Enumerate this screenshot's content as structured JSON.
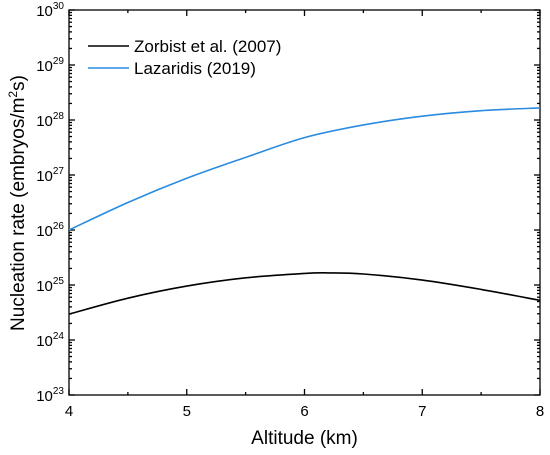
{
  "chart_data": {
    "type": "line",
    "xlabel": "Altitude (km)",
    "ylabel": {
      "main": "Nucleation rate (embryos/m",
      "sup1": "2",
      "mid": "s",
      "close": ")"
    },
    "xlim": [
      4,
      8
    ],
    "ylim": [
      23,
      30
    ],
    "yscale": "log10",
    "x_ticks": [
      "4",
      "5",
      "6",
      "7",
      "8"
    ],
    "y_ticks": [
      {
        "base": "10",
        "exp": "30"
      },
      {
        "base": "10",
        "exp": "29"
      },
      {
        "base": "10",
        "exp": "28"
      },
      {
        "base": "10",
        "exp": "27"
      },
      {
        "base": "10",
        "exp": "26"
      },
      {
        "base": "10",
        "exp": "25"
      },
      {
        "base": "10",
        "exp": "24"
      },
      {
        "base": "10",
        "exp": "23"
      }
    ],
    "grid": false,
    "legend_position": "top-left",
    "series": [
      {
        "name": "Zorbist et al. (2007)",
        "color": "#000000",
        "x": [
          4.0,
          4.5,
          5.0,
          5.5,
          6.0,
          6.2,
          6.5,
          7.0,
          7.5,
          8.0
        ],
        "log10_y": [
          24.47,
          24.76,
          24.98,
          25.13,
          25.21,
          25.22,
          25.2,
          25.09,
          24.92,
          24.72
        ]
      },
      {
        "name": "Lazaridis (2019)",
        "color": "#2a8be0",
        "x": [
          4.0,
          4.5,
          5.0,
          5.5,
          6.0,
          6.5,
          7.0,
          7.5,
          8.0
        ],
        "log10_y": [
          26.0,
          26.5,
          26.94,
          27.32,
          27.68,
          27.91,
          28.07,
          28.17,
          28.22
        ]
      }
    ]
  }
}
